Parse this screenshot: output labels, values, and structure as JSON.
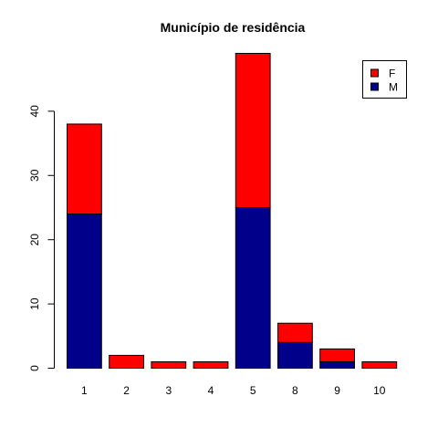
{
  "chart_data": {
    "type": "bar",
    "stacked": true,
    "title": "Município de residência",
    "xlabel": "",
    "ylabel": "",
    "categories": [
      "1",
      "2",
      "3",
      "4",
      "5",
      "8",
      "9",
      "10"
    ],
    "series": [
      {
        "name": "M",
        "values": [
          24,
          0,
          0,
          0,
          25,
          4,
          1,
          0
        ],
        "color": "#00008B"
      },
      {
        "name": "F",
        "values": [
          14,
          2,
          1,
          1,
          24,
          3,
          2,
          1
        ],
        "color": "#FF0000"
      }
    ],
    "legend_order": [
      "F",
      "M"
    ],
    "ylim": [
      0,
      49
    ],
    "yticks": [
      0,
      10,
      20,
      30,
      40
    ],
    "grid": false,
    "legend_position": "top-right"
  }
}
